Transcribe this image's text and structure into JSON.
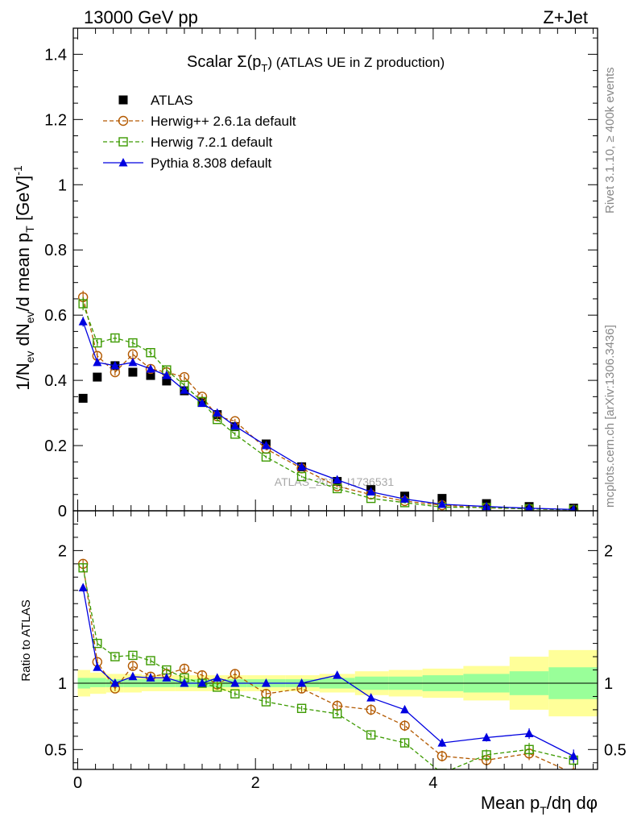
{
  "header": {
    "left": "13000 GeV pp",
    "right": "Z+Jet"
  },
  "side_labels": {
    "rivet": "Rivet 3.1.10, ≥ 400k events",
    "mcplots": "mcplots.cern.ch [arXiv:1306.3436]"
  },
  "chart_data": [
    {
      "type": "line",
      "panel": "main",
      "title": "Scalar Σ(p_T) (ATLAS UE in Z production)",
      "title_main": "Scalar Σ(p",
      "title_sub": "T",
      "title_tail": ") (ATLAS UE in Z production)",
      "xlabel": "Mean p_T/dη dφ",
      "xlabel_main": "Mean p",
      "xlabel_sub": "T",
      "xlabel_tail": "/dη dφ",
      "ylabel": "1/N_ev dN_ev/d mean p_T [GeV]^-1",
      "ylabel_parts": {
        "a": "1/N",
        "a_sub": "ev",
        "b": " dN",
        "b_sub": "ev",
        "c": "/d mean p",
        "c_sub": "T",
        "d": " [GeV]",
        "d_sup": "-1"
      },
      "xlim": [
        -0.05,
        5.85
      ],
      "ylim": [
        0,
        1.48
      ],
      "yticks": [
        0,
        0.2,
        0.4,
        0.6,
        0.8,
        1,
        1.2,
        1.4
      ],
      "ytick_labels": [
        "0",
        "0.2",
        "0.4",
        "0.6",
        "0.8",
        "1",
        "1.2",
        "1.4"
      ],
      "watermark": "ATLAS_2019_I1736531",
      "x": [
        0.06,
        0.22,
        0.42,
        0.62,
        0.82,
        1.0,
        1.2,
        1.4,
        1.57,
        1.77,
        2.12,
        2.52,
        2.92,
        3.3,
        3.68,
        4.1,
        4.6,
        5.08,
        5.58
      ],
      "series": [
        {
          "name": "ATLAS",
          "style": "data",
          "color": "#000000",
          "values": [
            0.345,
            0.41,
            0.445,
            0.425,
            0.415,
            0.398,
            0.368,
            0.332,
            0.295,
            0.258,
            0.205,
            0.135,
            0.09,
            0.065,
            0.045,
            0.038,
            0.022,
            0.013,
            0.008
          ],
          "errors": [
            0.008,
            0.006,
            0.006,
            0.006,
            0.006,
            0.006,
            0.006,
            0.005,
            0.005,
            0.005,
            0.004,
            0.004,
            0.003,
            0.003,
            0.003,
            0.003,
            0.002,
            0.002,
            0.002
          ]
        },
        {
          "name": "Herwig++ 2.6.1a default",
          "style": "circle",
          "color": "#b35900",
          "values": [
            0.655,
            0.475,
            0.425,
            0.48,
            0.435,
            0.425,
            0.41,
            0.35,
            0.29,
            0.275,
            0.19,
            0.13,
            0.075,
            0.05,
            0.03,
            0.017,
            0.009,
            0.006,
            0.003
          ],
          "errors": [
            0.02,
            0.012,
            0.01,
            0.01,
            0.01,
            0.01,
            0.01,
            0.008,
            0.007,
            0.007,
            0.005,
            0.004,
            0.003,
            0.003,
            0.002,
            0.002,
            0.001,
            0.001,
            0.001
          ]
        },
        {
          "name": "Herwig 7.2.1 default",
          "style": "square",
          "color": "#3c9a00",
          "values": [
            0.635,
            0.515,
            0.53,
            0.515,
            0.485,
            0.432,
            0.385,
            0.335,
            0.28,
            0.235,
            0.165,
            0.105,
            0.068,
            0.038,
            0.025,
            0.011,
            0.01,
            0.006,
            0.003
          ],
          "errors": [
            0.02,
            0.01,
            0.01,
            0.01,
            0.01,
            0.01,
            0.008,
            0.007,
            0.006,
            0.006,
            0.004,
            0.003,
            0.002,
            0.002,
            0.002,
            0.001,
            0.001,
            0.001,
            0.001
          ]
        },
        {
          "name": "Pythia 8.308 default",
          "style": "triangle",
          "color": "#0000e0",
          "values": [
            0.58,
            0.455,
            0.445,
            0.455,
            0.435,
            0.415,
            0.37,
            0.33,
            0.3,
            0.26,
            0.2,
            0.135,
            0.095,
            0.058,
            0.036,
            0.02,
            0.013,
            0.008,
            0.004
          ],
          "errors": [
            0.015,
            0.01,
            0.008,
            0.008,
            0.008,
            0.008,
            0.007,
            0.006,
            0.006,
            0.005,
            0.004,
            0.003,
            0.003,
            0.002,
            0.002,
            0.001,
            0.001,
            0.001,
            0.001
          ]
        }
      ]
    },
    {
      "type": "line",
      "panel": "ratio",
      "ylabel": "Ratio to ATLAS",
      "ylim": [
        0.35,
        2.3
      ],
      "yticks": [
        0.5,
        1,
        2
      ],
      "ytick_labels": [
        "0.5",
        "1",
        "2"
      ],
      "xticks": [
        0,
        2,
        4
      ],
      "xtick_labels": [
        "0",
        "2",
        "4"
      ],
      "xlim": [
        -0.05,
        5.85
      ],
      "band_edges": [
        0,
        0.14,
        0.32,
        0.52,
        0.72,
        0.92,
        1.1,
        1.3,
        1.5,
        1.66,
        1.9,
        2.34,
        2.72,
        3.12,
        3.5,
        3.88,
        4.34,
        4.86,
        5.3,
        5.86
      ],
      "band_inner": [
        [
          0.96,
          1.04
        ],
        [
          0.97,
          1.04
        ],
        [
          0.97,
          1.03
        ],
        [
          0.97,
          1.03
        ],
        [
          0.97,
          1.03
        ],
        [
          0.97,
          1.03
        ],
        [
          0.97,
          1.03
        ],
        [
          0.97,
          1.03
        ],
        [
          0.97,
          1.03
        ],
        [
          0.97,
          1.03
        ],
        [
          0.97,
          1.03
        ],
        [
          0.97,
          1.03
        ],
        [
          0.96,
          1.04
        ],
        [
          0.95,
          1.05
        ],
        [
          0.95,
          1.05
        ],
        [
          0.94,
          1.06
        ],
        [
          0.93,
          1.07
        ],
        [
          0.91,
          1.09
        ],
        [
          0.88,
          1.12
        ]
      ],
      "band_outer": [
        [
          0.9,
          1.1
        ],
        [
          0.92,
          1.08
        ],
        [
          0.93,
          1.07
        ],
        [
          0.93,
          1.07
        ],
        [
          0.94,
          1.06
        ],
        [
          0.94,
          1.06
        ],
        [
          0.94,
          1.06
        ],
        [
          0.94,
          1.06
        ],
        [
          0.94,
          1.06
        ],
        [
          0.94,
          1.06
        ],
        [
          0.94,
          1.06
        ],
        [
          0.94,
          1.06
        ],
        [
          0.93,
          1.07
        ],
        [
          0.91,
          1.09
        ],
        [
          0.9,
          1.1
        ],
        [
          0.89,
          1.11
        ],
        [
          0.87,
          1.13
        ],
        [
          0.8,
          1.2
        ],
        [
          0.75,
          1.25
        ]
      ],
      "x": [
        0.06,
        0.22,
        0.42,
        0.62,
        0.82,
        1.0,
        1.2,
        1.4,
        1.57,
        1.77,
        2.12,
        2.52,
        2.92,
        3.3,
        3.68,
        4.1,
        4.6,
        5.08,
        5.58
      ],
      "series": [
        {
          "name": "Herwig++ 2.6.1a default",
          "style": "circle",
          "color": "#b35900",
          "values": [
            1.9,
            1.16,
            0.96,
            1.13,
            1.05,
            1.07,
            1.11,
            1.06,
            0.99,
            1.07,
            0.92,
            0.96,
            0.83,
            0.8,
            0.68,
            0.45,
            0.42,
            0.47,
            0.32
          ],
          "errors": [
            0.03,
            0.03,
            0.02,
            0.03,
            0.03,
            0.03,
            0.03,
            0.03,
            0.03,
            0.03,
            0.03,
            0.03,
            0.04,
            0.04,
            0.04,
            0.04,
            0.04,
            0.05,
            0.05
          ]
        },
        {
          "name": "Herwig 7.2.1 default",
          "style": "square",
          "color": "#3c9a00",
          "values": [
            1.87,
            1.3,
            1.2,
            1.21,
            1.17,
            1.1,
            1.04,
            1.0,
            0.97,
            0.92,
            0.86,
            0.81,
            0.77,
            0.61,
            0.55,
            0.32,
            0.46,
            0.5,
            0.42
          ],
          "errors": [
            0.03,
            0.02,
            0.02,
            0.02,
            0.02,
            0.02,
            0.02,
            0.02,
            0.02,
            0.02,
            0.02,
            0.02,
            0.02,
            0.02,
            0.03,
            0.03,
            0.04,
            0.05,
            0.05
          ]
        },
        {
          "name": "Pythia 8.308 default",
          "style": "triangle",
          "color": "#0000e0",
          "values": [
            1.72,
            1.12,
            1.0,
            1.05,
            1.04,
            1.04,
            1.0,
            1.0,
            1.04,
            1.0,
            1.0,
            1.0,
            1.06,
            0.89,
            0.8,
            0.55,
            0.59,
            0.62,
            0.45
          ],
          "errors": [
            0.03,
            0.02,
            0.02,
            0.02,
            0.02,
            0.02,
            0.02,
            0.02,
            0.02,
            0.02,
            0.02,
            0.02,
            0.02,
            0.02,
            0.02,
            0.03,
            0.03,
            0.04,
            0.05
          ]
        }
      ]
    }
  ]
}
